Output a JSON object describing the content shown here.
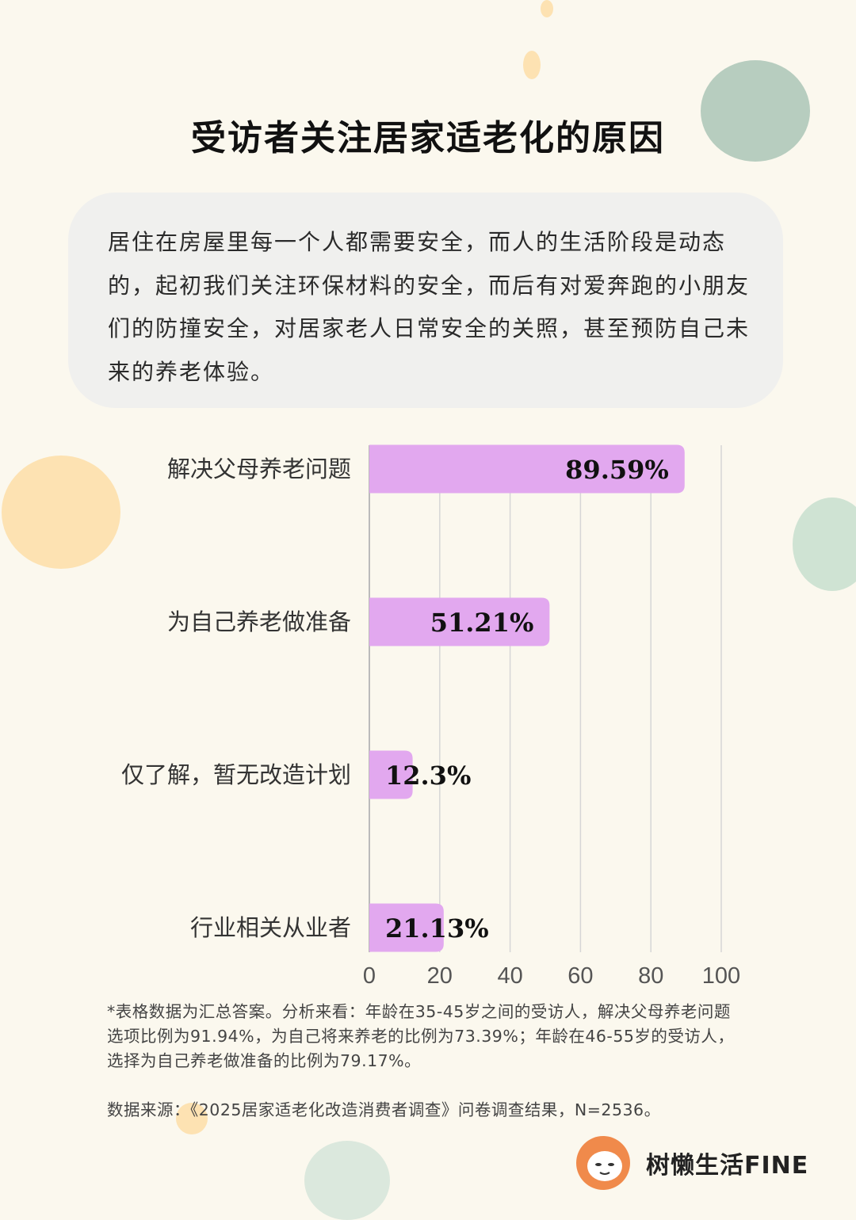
{
  "title": "受访者关注居家适老化的原因",
  "intro": "居住在房屋里每一个人都需要安全，而人的生活阶段是动态的，起初我们关注环保材料的安全，而后有对爱奔跑的小朋友们的防撞安全，对居家老人日常安全的关照，甚至预防自己未来的养老体验。",
  "chart_data": {
    "type": "bar",
    "orientation": "horizontal",
    "categories": [
      "解决父母养老问题",
      "为自己养老做准备",
      "仅了解，暂无改造计划",
      "行业相关从业者"
    ],
    "values": [
      89.59,
      51.21,
      12.3,
      21.13
    ],
    "value_labels": [
      "89.59%",
      "51.21%",
      "12.3%",
      "21.13%"
    ],
    "xlim": [
      0,
      100
    ],
    "xticks": [
      0,
      20,
      40,
      60,
      80,
      100
    ],
    "grid": true,
    "bar_color": "#e2a8ef",
    "title": "",
    "xlabel": "",
    "ylabel": ""
  },
  "footnote": "*表格数据为汇总答案。分析来看：年龄在35-45岁之间的受访人，解决父母养老问题选项比例为91.94%，为自己将来养老的比例为73.39%；年龄在46-55岁的受访人，选择为自己养老做准备的比例为79.17%。",
  "source": "数据来源：《2025居家适老化改造消费者调查》问卷调查结果，N=2536。",
  "brand": {
    "name": "树懒生活FINE",
    "logo_icon": "sloth-icon"
  }
}
